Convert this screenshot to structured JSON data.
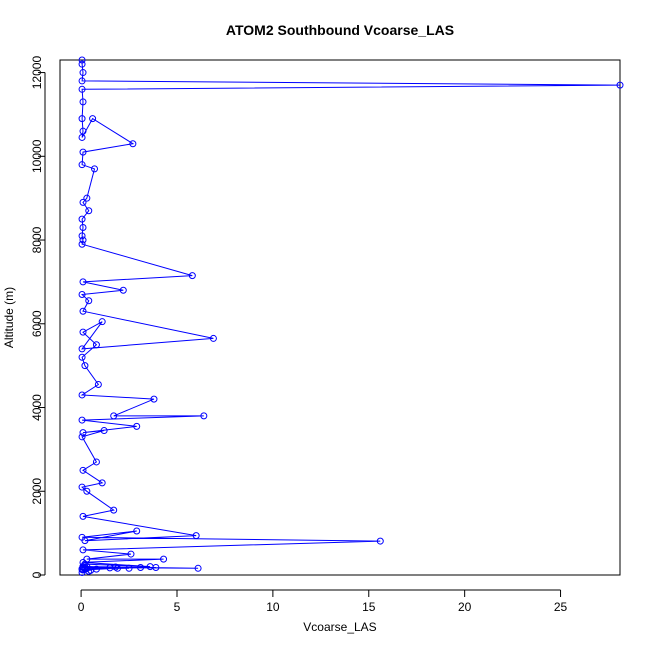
{
  "chart_data": {
    "type": "line",
    "title": "ATOM2 Southbound Vcoarse_LAS",
    "xlabel": "Vcoarse_LAS",
    "ylabel": "Altitude (m)",
    "xlim": [
      -1.1,
      28.1
    ],
    "ylim": [
      0,
      12300
    ],
    "x_ticks": [
      0,
      5,
      10,
      15,
      20,
      25
    ],
    "y_ticks": [
      0,
      2000,
      4000,
      6000,
      8000,
      10000,
      12000
    ],
    "colors": {
      "series": "#0000ff"
    },
    "series": [
      {
        "marker": "open-circle",
        "line": true,
        "x": [
          0.05,
          0.05,
          0.1,
          0.05,
          28.1,
          0.05,
          0.1,
          0.05,
          0.1,
          0.05,
          0.6,
          2.7,
          0.1,
          0.05,
          0.7,
          0.3,
          0.1,
          0.4,
          0.05,
          0.1,
          0.05,
          0.1,
          0.05,
          5.8,
          0.1,
          2.2,
          0.05,
          0.4,
          0.1,
          6.9,
          0.05,
          1.1,
          0.1,
          0.8,
          0.05,
          0.2,
          0.9,
          0.05,
          3.8,
          1.7,
          6.4,
          0.05,
          2.9,
          0.1,
          1.2,
          0.05,
          0.8,
          0.1,
          1.1,
          0.05,
          0.3,
          1.7,
          0.1,
          6.0,
          0.2,
          2.9,
          0.05,
          15.6,
          0.1,
          2.6,
          0.3,
          4.3,
          0.1,
          3.6,
          0.2,
          0.1,
          6.1,
          0.3,
          3.9,
          1.8,
          0.2,
          2.5,
          0.1,
          3.1,
          0.05,
          0.8,
          0.1,
          1.5,
          0.05,
          0.5,
          0.2,
          1.9,
          0.1,
          0.4,
          0.05
        ],
        "y": [
          12300,
          12200,
          12000,
          11800,
          11700,
          11600,
          11300,
          10900,
          10600,
          10450,
          10900,
          10300,
          10100,
          9800,
          9700,
          9000,
          8900,
          8700,
          8500,
          8300,
          8100,
          8000,
          7900,
          7150,
          7000,
          6800,
          6700,
          6550,
          6300,
          5650,
          5400,
          6050,
          5800,
          5500,
          5200,
          5000,
          4550,
          4300,
          4200,
          3800,
          3800,
          3700,
          3550,
          3400,
          3450,
          3300,
          2700,
          2500,
          2200,
          2100,
          2000,
          1550,
          1400,
          940,
          820,
          1050,
          900,
          810,
          600,
          500,
          380,
          380,
          300,
          200,
          260,
          180,
          160,
          200,
          180,
          190,
          150,
          160,
          200,
          180,
          150,
          140,
          200,
          170,
          130,
          110,
          180,
          160,
          120,
          90,
          60
        ]
      }
    ]
  }
}
